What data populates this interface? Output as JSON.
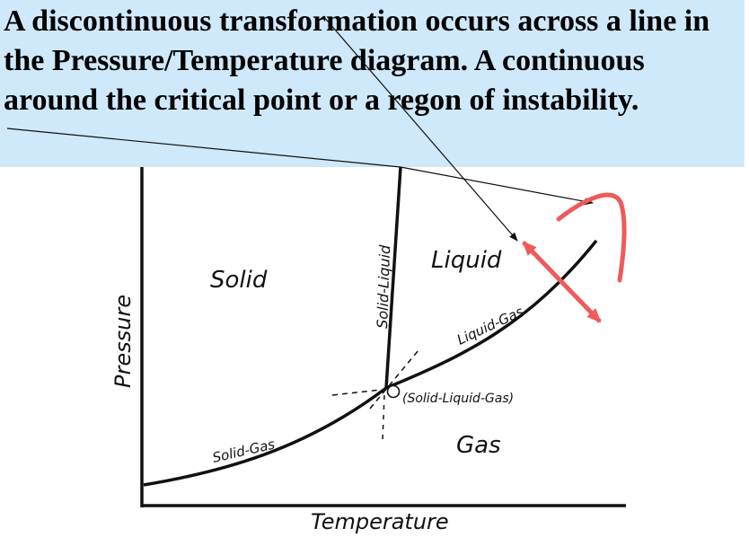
{
  "caption": {
    "text": "A discontinuous transformation occurs across a line in the Pressure/Temperature diagram. A continuous around the critical point or a regon of instability.",
    "background": "#cfe9fb"
  },
  "diagram": {
    "regions": {
      "solid": "Solid",
      "liquid": "Liquid",
      "gas": "Gas"
    },
    "curves": {
      "solid_liquid": "Solid-Liquid",
      "liquid_gas": "Liquid-Gas",
      "solid_gas": "Solid-Gas"
    },
    "triple_point": {
      "symbol": "O",
      "label": "(Solid-Liquid-Gas)"
    },
    "axes": {
      "xlabel": "Temperature",
      "ylabel": "Pressure"
    }
  },
  "colors": {
    "annotation_red": "#ef5a5a",
    "ink": "#111111"
  }
}
